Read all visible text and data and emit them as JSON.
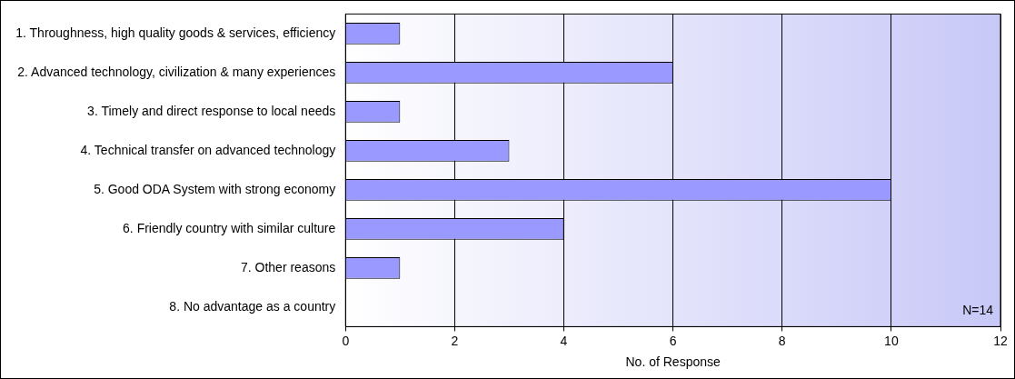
{
  "chart_data": {
    "type": "bar",
    "orientation": "horizontal",
    "xlabel": "No. of Response",
    "categories": [
      "1. Throughness, high quality goods & services, efficiency",
      "2. Advanced technology, civilization & many experiences",
      "3. Timely and direct response to local needs",
      "4. Technical transfer on advanced technology",
      "5. Good ODA System with strong economy",
      "6. Friendly country with similar culture",
      "7. Other reasons",
      "8. No advantage as a country"
    ],
    "values": [
      1,
      6,
      1,
      3,
      10,
      4,
      1,
      0
    ],
    "color": "#9999ff",
    "xlim": [
      0,
      12
    ],
    "xticks": [
      0,
      2,
      4,
      6,
      8,
      10,
      12
    ],
    "grid": "x",
    "annotations": [
      "N=14"
    ]
  }
}
